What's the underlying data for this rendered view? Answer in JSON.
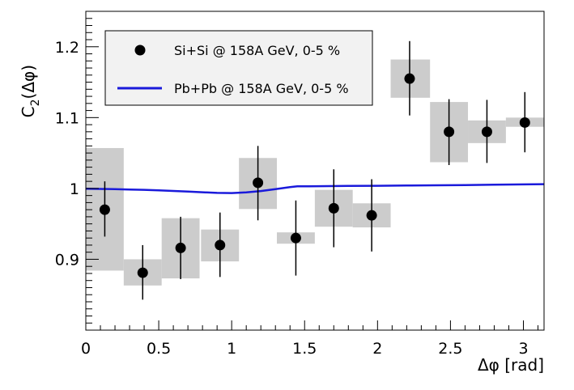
{
  "chart_data": {
    "type": "scatter",
    "xlabel": "Δφ [rad]",
    "ylabel_main": "C",
    "ylabel_sub": "2",
    "ylabel_arg": "(Δφ)",
    "xlim": [
      0,
      3.1416
    ],
    "ylim": [
      0.8,
      1.25
    ],
    "x_ticks": [
      0,
      0.5,
      1,
      1.5,
      2,
      2.5,
      3
    ],
    "x_tick_labels": [
      "0",
      "0.5",
      "1",
      "1.5",
      "2",
      "2.5",
      "3"
    ],
    "y_ticks": [
      0.9,
      1.0,
      1.1,
      1.2
    ],
    "y_tick_labels": [
      "0.9",
      "1",
      "1.1",
      "1.2"
    ],
    "legend": {
      "position": "top-left",
      "entries": [
        {
          "label": "Si+Si @ 158A GeV, 0-5 %",
          "marker": "circle"
        },
        {
          "label": "Pb+Pb @ 158A GeV, 0-5 %",
          "marker": "line"
        }
      ]
    },
    "series": [
      {
        "name": "Si+Si @ 158A GeV, 0-5 %",
        "kind": "points",
        "color": "#000000",
        "box_color": "#cccccc",
        "points": [
          {
            "x": 0.13,
            "y": 0.97,
            "stat_lo": 0.932,
            "stat_hi": 1.01,
            "sys_lo": 0.884,
            "sys_hi": 1.057,
            "sys_x0": 0.0,
            "sys_x1": 0.26
          },
          {
            "x": 0.39,
            "y": 0.881,
            "stat_lo": 0.843,
            "stat_hi": 0.92,
            "sys_lo": 0.863,
            "sys_hi": 0.9,
            "sys_x0": 0.26,
            "sys_x1": 0.52
          },
          {
            "x": 0.65,
            "y": 0.916,
            "stat_lo": 0.872,
            "stat_hi": 0.96,
            "sys_lo": 0.873,
            "sys_hi": 0.958,
            "sys_x0": 0.52,
            "sys_x1": 0.78
          },
          {
            "x": 0.92,
            "y": 0.92,
            "stat_lo": 0.875,
            "stat_hi": 0.966,
            "sys_lo": 0.897,
            "sys_hi": 0.942,
            "sys_x0": 0.79,
            "sys_x1": 1.05
          },
          {
            "x": 1.18,
            "y": 1.008,
            "stat_lo": 0.955,
            "stat_hi": 1.06,
            "sys_lo": 0.971,
            "sys_hi": 1.043,
            "sys_x0": 1.05,
            "sys_x1": 1.31
          },
          {
            "x": 1.44,
            "y": 0.93,
            "stat_lo": 0.877,
            "stat_hi": 0.983,
            "sys_lo": 0.922,
            "sys_hi": 0.938,
            "sys_x0": 1.31,
            "sys_x1": 1.57
          },
          {
            "x": 1.7,
            "y": 0.972,
            "stat_lo": 0.917,
            "stat_hi": 1.027,
            "sys_lo": 0.946,
            "sys_hi": 0.998,
            "sys_x0": 1.57,
            "sys_x1": 1.83
          },
          {
            "x": 1.96,
            "y": 0.962,
            "stat_lo": 0.911,
            "stat_hi": 1.013,
            "sys_lo": 0.945,
            "sys_hi": 0.979,
            "sys_x0": 1.83,
            "sys_x1": 2.09
          },
          {
            "x": 2.22,
            "y": 1.155,
            "stat_lo": 1.103,
            "stat_hi": 1.208,
            "sys_lo": 1.128,
            "sys_hi": 1.182,
            "sys_x0": 2.09,
            "sys_x1": 2.36
          },
          {
            "x": 2.49,
            "y": 1.08,
            "stat_lo": 1.033,
            "stat_hi": 1.126,
            "sys_lo": 1.037,
            "sys_hi": 1.122,
            "sys_x0": 2.36,
            "sys_x1": 2.62
          },
          {
            "x": 2.75,
            "y": 1.08,
            "stat_lo": 1.036,
            "stat_hi": 1.125,
            "sys_lo": 1.064,
            "sys_hi": 1.096,
            "sys_x0": 2.62,
            "sys_x1": 2.88
          },
          {
            "x": 3.01,
            "y": 1.093,
            "stat_lo": 1.051,
            "stat_hi": 1.136,
            "sys_lo": 1.087,
            "sys_hi": 1.1,
            "sys_x0": 2.88,
            "sys_x1": 3.1416
          }
        ]
      },
      {
        "name": "Pb+Pb @ 158A GeV, 0-5 %",
        "kind": "line",
        "color": "#1a1adb",
        "x": [
          0.0,
          0.1,
          0.2,
          0.3,
          0.4,
          0.5,
          0.6,
          0.7,
          0.8,
          0.9,
          1.0,
          1.1,
          1.2,
          1.3,
          1.4,
          1.45,
          1.6,
          1.8,
          2.0,
          2.2,
          2.4,
          2.6,
          2.8,
          3.0,
          3.1416
        ],
        "y": [
          0.9995,
          0.9993,
          0.999,
          0.9985,
          0.998,
          0.9972,
          0.9964,
          0.9955,
          0.9946,
          0.9937,
          0.9935,
          0.9945,
          0.9963,
          0.999,
          1.0018,
          1.003,
          1.0032,
          1.0035,
          1.0038,
          1.0041,
          1.0044,
          1.0048,
          1.0052,
          1.0057,
          1.006
        ]
      }
    ]
  }
}
